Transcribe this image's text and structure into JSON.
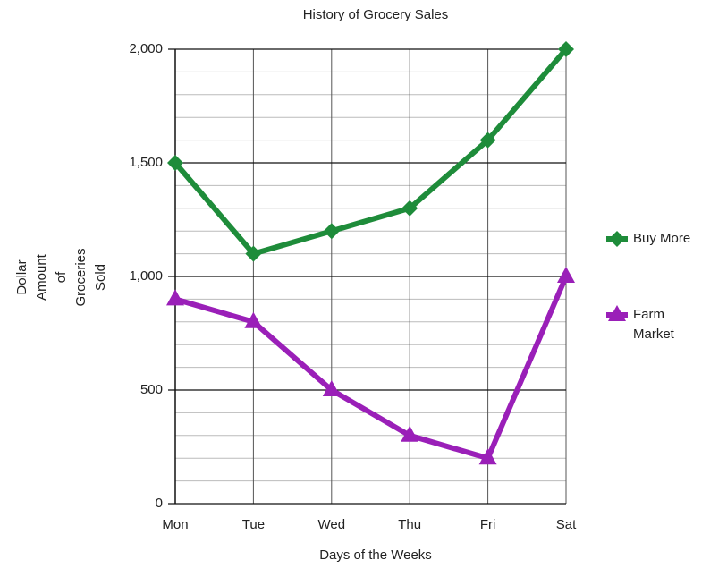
{
  "chart_data": {
    "type": "line",
    "title": "History of Grocery Sales",
    "xlabel": "Days of the Weeks",
    "ylabel": [
      "Dollar",
      "Amount",
      "of",
      "Groceries",
      "Sold"
    ],
    "categories": [
      "Mon",
      "Tue",
      "Wed",
      "Thu",
      "Fri",
      "Sat"
    ],
    "series": [
      {
        "name": "Buy More",
        "color": "#1e8c3a",
        "marker": "diamond",
        "values": [
          1500,
          1100,
          1200,
          1300,
          1600,
          2000
        ]
      },
      {
        "name": "Farm Market",
        "color": "#9a1fb8",
        "marker": "triangle",
        "values": [
          900,
          800,
          500,
          300,
          200,
          1000
        ]
      }
    ],
    "ylim": [
      0,
      2000
    ],
    "yticks": [
      0,
      500,
      {
        "value": 1000,
        "label": "1,000"
      },
      {
        "value": 1500,
        "label": "1,500"
      },
      {
        "value": 2000,
        "label": "2,000"
      }
    ],
    "grid": true,
    "minor_grid": true,
    "legend": "right"
  }
}
